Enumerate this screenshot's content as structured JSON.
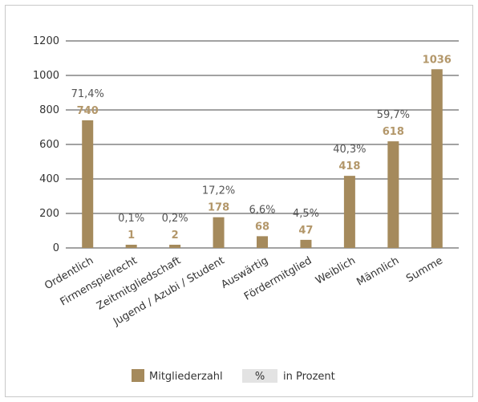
{
  "chart_data": {
    "type": "bar",
    "categories": [
      "Ordentlich",
      "Firmenspielrecht",
      "Zeitmitgliedschaft",
      "Jugend / Azubi / Student",
      "Auswärtig",
      "Fördermitglied",
      "Weiblich",
      "Männlich",
      "Summe"
    ],
    "series": [
      {
        "name": "Mitgliederzahl",
        "values": [
          740,
          1,
          2,
          178,
          68,
          47,
          418,
          618,
          1036
        ]
      }
    ],
    "value_labels": [
      "740",
      "1",
      "2",
      "178",
      "68",
      "47",
      "418",
      "618",
      "1036"
    ],
    "percent_labels": [
      "71,4%",
      "0,1%",
      "0,2%",
      "17,2%",
      "6,6%",
      "4,5%",
      "40,3%",
      "59,7%",
      ""
    ],
    "ylim": [
      0,
      1200
    ],
    "yticks": [
      0,
      200,
      400,
      600,
      800,
      1000,
      1200
    ],
    "grid": true,
    "legend": {
      "position": "bottom",
      "items": [
        {
          "swatch": "",
          "label": "Mitgliederzahl"
        },
        {
          "swatch": "%",
          "label": "in Prozent"
        }
      ]
    },
    "colors": {
      "bar": "#a58a5c",
      "value_label": "#b3976a",
      "grid": "#444444",
      "percent_box": "#e3e3e3"
    }
  }
}
